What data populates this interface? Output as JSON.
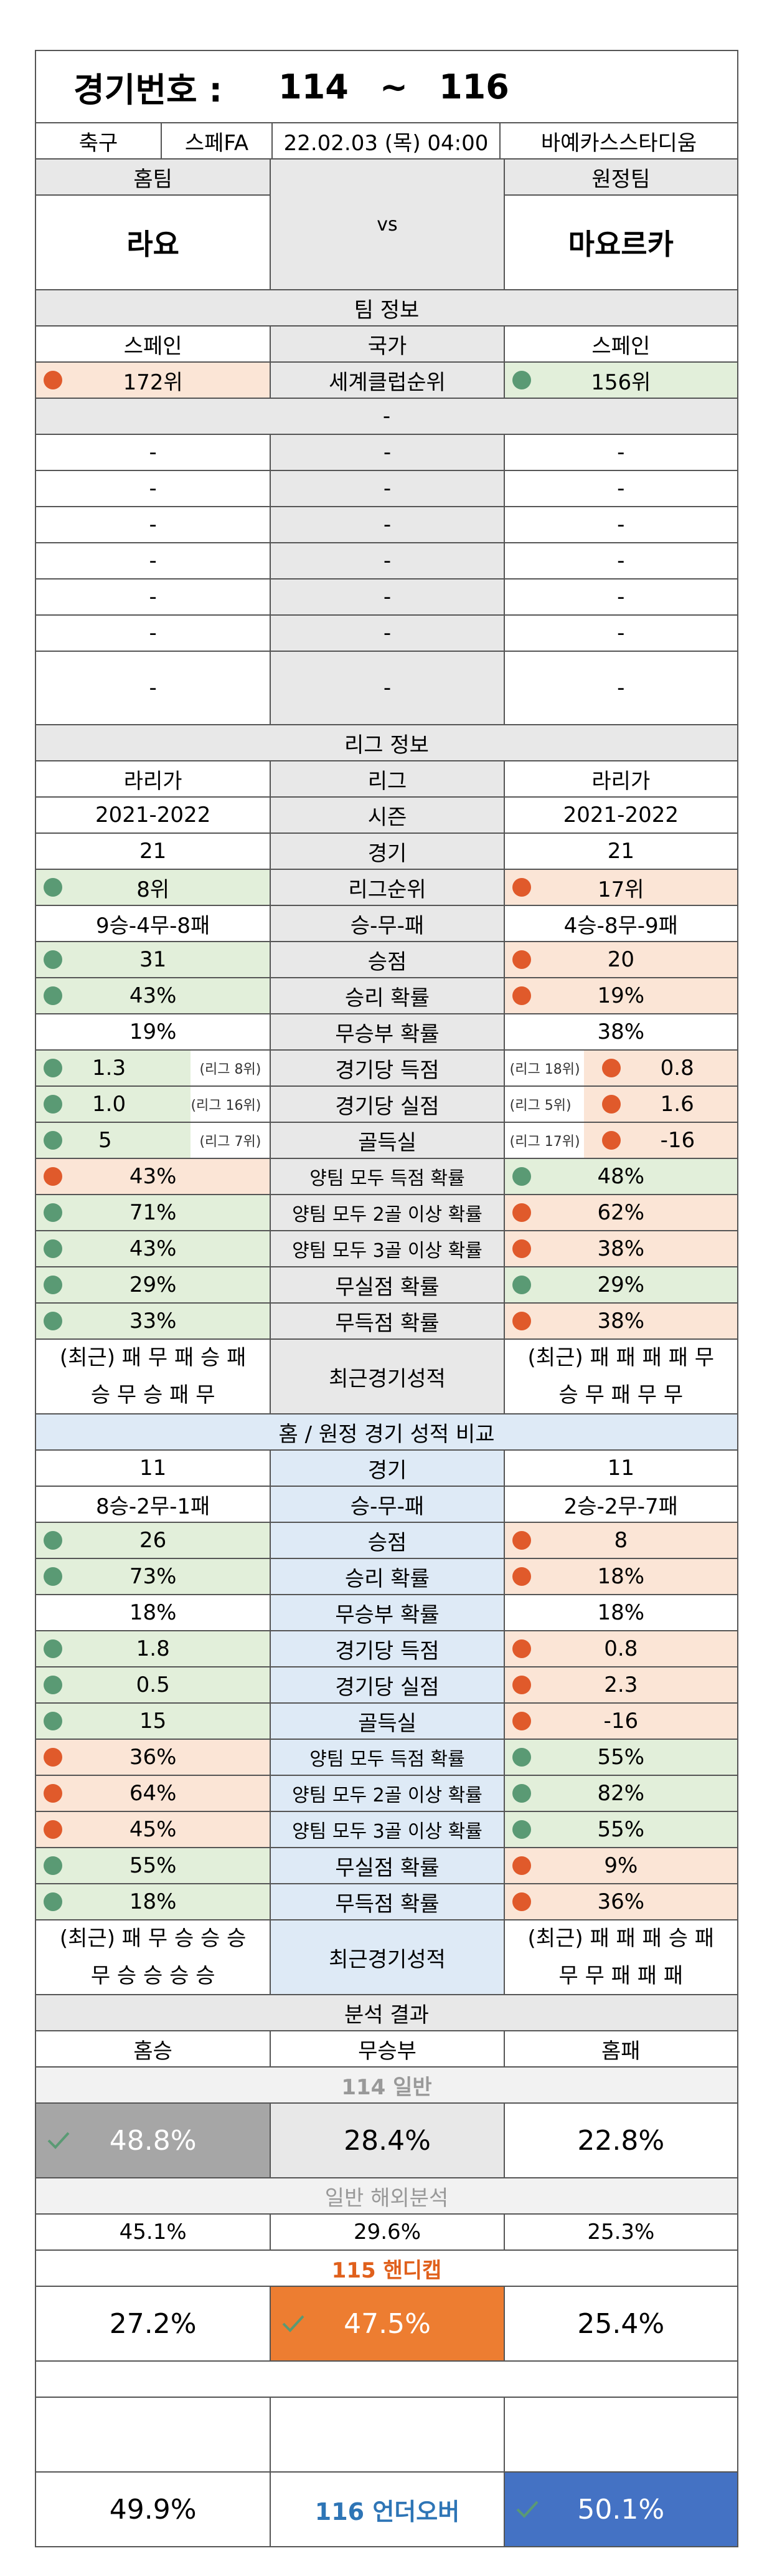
{
  "header": {
    "label": "경기번호 :",
    "from": "114",
    "tilde": "~",
    "to": "116"
  },
  "match": {
    "sport": "축구",
    "league": "스페FA",
    "datetime": "22.02.03 (목) 04:00",
    "stadium": "바예카스스타디움"
  },
  "teams": {
    "home_label": "홈팀",
    "away_label": "원정팀",
    "home": "라요",
    "vs": "vs",
    "away": "마요르카"
  },
  "team_info": {
    "section": "팀 정보",
    "country_home": "스페인",
    "country_label": "국가",
    "country_away": "스페인",
    "rank_home": "172위",
    "rank_label": "세계클럽순위",
    "rank_away": "156위",
    "dash_row": "-",
    "dash": "-"
  },
  "league_info": {
    "section": "리그 정보",
    "home_league": "라리가",
    "league_label": "리그",
    "away_league": "라리가",
    "home_season": "2021-2022",
    "season_label": "시즌",
    "away_season": "2021-2022",
    "home_games": "21",
    "games_label": "경기",
    "away_games": "21",
    "home_rank": "8위",
    "rank_label": "리그순위",
    "away_rank": "17위",
    "home_wdl": "9승-4무-8패",
    "wdl_label": "승-무-패",
    "away_wdl": "4승-8무-9패",
    "home_points": "31",
    "points_label": "승점",
    "away_points": "20",
    "home_winp": "43%",
    "winp_label": "승리 확률",
    "away_winp": "19%",
    "home_drawp": "19%",
    "drawp_label": "무승부 확률",
    "away_drawp": "38%",
    "home_gf": "1.3",
    "home_gf_rank": "(리그 8위)",
    "gf_label": "경기당 득점",
    "away_gf_rank": "(리그 18위)",
    "away_gf": "0.8",
    "home_ga": "1.0",
    "home_ga_rank": "(리그 16위)",
    "ga_label": "경기당 실점",
    "away_ga_rank": "(리그 5위)",
    "away_ga": "1.6",
    "home_gd": "5",
    "home_gd_rank": "(리그 7위)",
    "gd_label": "골득실",
    "away_gd_rank": "(리그 17위)",
    "away_gd": "-16",
    "home_btts": "43%",
    "btts_label": "양팀 모두 득점 확률",
    "away_btts": "48%",
    "home_b2": "71%",
    "b2_label": "양팀 모두 2골 이상 확률",
    "away_b2": "62%",
    "home_b3": "43%",
    "b3_label": "양팀 모두 3골 이상 확률",
    "away_b3": "38%",
    "home_cs": "29%",
    "cs_label": "무실점 확률",
    "away_cs": "29%",
    "home_fts": "33%",
    "fts_label": "무득점 확률",
    "away_fts": "38%",
    "home_recent_1": "(최근) 패 무 패 승 패",
    "home_recent_2": "승 무 승 패 무",
    "recent_label": "최근경기성적",
    "away_recent_1": "(최근) 패 패 패 패 무",
    "away_recent_2": "승 무 패 무 무"
  },
  "ha_info": {
    "section": "홈 / 원정 경기 성적 비교",
    "home_games": "11",
    "games_label": "경기",
    "away_games": "11",
    "home_wdl": "8승-2무-1패",
    "wdl_label": "승-무-패",
    "away_wdl": "2승-2무-7패",
    "home_points": "26",
    "points_label": "승점",
    "away_points": "8",
    "home_winp": "73%",
    "winp_label": "승리 확률",
    "away_winp": "18%",
    "home_drawp": "18%",
    "drawp_label": "무승부 확률",
    "away_drawp": "18%",
    "home_gf": "1.8",
    "gf_label": "경기당 득점",
    "away_gf": "0.8",
    "home_ga": "0.5",
    "ga_label": "경기당 실점",
    "away_ga": "2.3",
    "home_gd": "15",
    "gd_label": "골득실",
    "away_gd": "-16",
    "home_btts": "36%",
    "btts_label": "양팀 모두 득점 확률",
    "away_btts": "55%",
    "home_b2": "64%",
    "b2_label": "양팀 모두 2골 이상 확률",
    "away_b2": "82%",
    "home_b3": "45%",
    "b3_label": "양팀 모두 3골 이상 확률",
    "away_b3": "55%",
    "home_cs": "55%",
    "cs_label": "무실점 확률",
    "away_cs": "9%",
    "home_fts": "18%",
    "fts_label": "무득점 확률",
    "away_fts": "36%",
    "home_recent_1": "(최근) 패 무 승 승 승",
    "home_recent_2": "무 승 승 승 승",
    "recent_label": "최근경기성적",
    "away_recent_1": "(최근) 패 패 패 승 패",
    "away_recent_2": "무 무 패 패 패"
  },
  "analysis": {
    "section": "분석 결과",
    "col_home": "홈승",
    "col_draw": "무승부",
    "col_away": "홈패",
    "normal_title": "114 일반",
    "normal_home": "48.8%",
    "normal_draw": "28.4%",
    "normal_away": "22.8%",
    "overseas_title": "일반 해외분석",
    "overseas_home": "45.1%",
    "overseas_draw": "29.6%",
    "overseas_away": "25.3%",
    "handicap_title": "115 핸디캡",
    "handicap_home": "27.2%",
    "handicap_draw": "47.5%",
    "handicap_away": "25.4%",
    "uo_title": "116 언더오버",
    "uo_under": "49.9%",
    "uo_over": "50.1%"
  },
  "colors": {
    "green": "#e2efda",
    "orange": "#fbe5d6",
    "blue_header": "#deeaf6",
    "gray_pick": "#a6a6a6",
    "orange_pick": "#ed7d31",
    "blue_pick": "#4472c4"
  }
}
